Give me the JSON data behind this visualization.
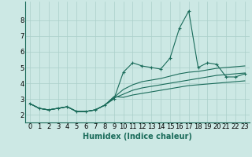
{
  "xlabel": "Humidex (Indice chaleur)",
  "bg_color": "#cce8e4",
  "grid_color": "#aacfca",
  "line_color": "#1a6b5a",
  "x_values": [
    0,
    1,
    2,
    3,
    4,
    5,
    6,
    7,
    8,
    9,
    10,
    11,
    12,
    13,
    14,
    15,
    16,
    17,
    18,
    19,
    20,
    21,
    22,
    23
  ],
  "y_main": [
    2.7,
    2.4,
    2.3,
    2.4,
    2.5,
    2.2,
    2.2,
    2.3,
    2.6,
    3.0,
    4.7,
    5.3,
    5.1,
    5.0,
    4.9,
    5.6,
    7.5,
    8.6,
    5.0,
    5.3,
    5.2,
    4.4,
    4.4,
    4.6
  ],
  "y_line1": [
    2.7,
    2.4,
    2.3,
    2.4,
    2.5,
    2.2,
    2.2,
    2.3,
    2.6,
    3.1,
    3.6,
    3.9,
    4.1,
    4.2,
    4.3,
    4.45,
    4.6,
    4.7,
    4.75,
    4.85,
    4.95,
    5.0,
    5.05,
    5.1
  ],
  "y_line2": [
    2.7,
    2.4,
    2.3,
    2.4,
    2.5,
    2.2,
    2.2,
    2.3,
    2.6,
    3.05,
    3.3,
    3.55,
    3.7,
    3.8,
    3.9,
    4.0,
    4.1,
    4.2,
    4.3,
    4.4,
    4.5,
    4.55,
    4.6,
    4.65
  ],
  "y_line3": [
    2.7,
    2.4,
    2.3,
    2.4,
    2.5,
    2.2,
    2.2,
    2.3,
    2.6,
    3.15,
    3.1,
    3.25,
    3.35,
    3.45,
    3.55,
    3.65,
    3.75,
    3.85,
    3.9,
    3.95,
    4.0,
    4.05,
    4.1,
    4.15
  ],
  "xlim": [
    -0.5,
    23.5
  ],
  "ylim": [
    1.5,
    9.2
  ],
  "yticks": [
    2,
    3,
    4,
    5,
    6,
    7,
    8
  ],
  "xticks": [
    0,
    1,
    2,
    3,
    4,
    5,
    6,
    7,
    8,
    9,
    10,
    11,
    12,
    13,
    14,
    15,
    16,
    17,
    18,
    19,
    20,
    21,
    22,
    23
  ],
  "xlabel_fontsize": 7,
  "tick_fontsize": 6
}
